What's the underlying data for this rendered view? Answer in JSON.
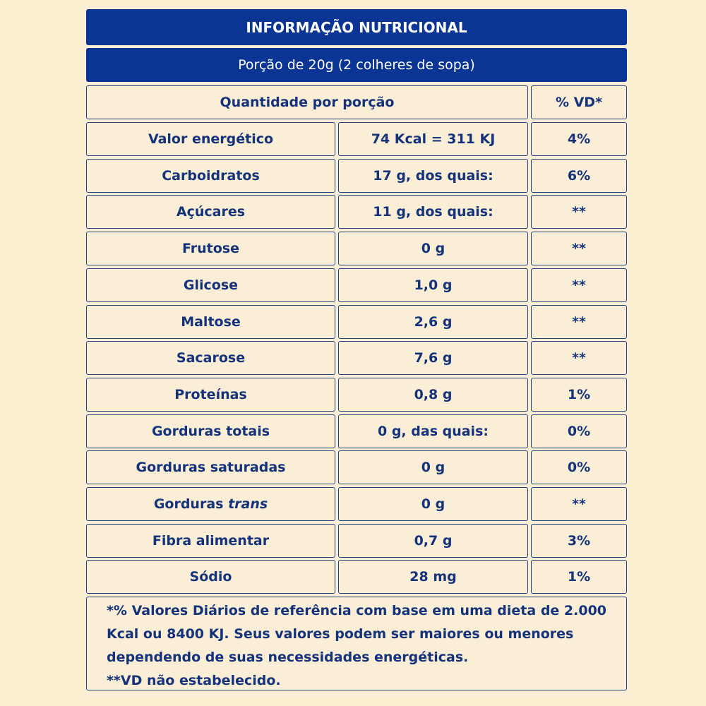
{
  "header": {
    "title": "INFORMAÇÃO NUTRICIONAL",
    "portion": "Porção de 20g (2 colheres de sopa)"
  },
  "columns": {
    "quantity": "Quantidade por porção",
    "vd": "% VD*"
  },
  "rows": [
    {
      "name": "Valor energético",
      "amount": "74 Kcal = 311 KJ",
      "vd": "4%"
    },
    {
      "name": "Carboidratos",
      "amount": "17 g, dos quais:",
      "vd": "6%"
    },
    {
      "name": "Açúcares",
      "amount": "11 g, dos quais:",
      "vd": "**"
    },
    {
      "name": "Frutose",
      "amount": "0 g",
      "vd": "**"
    },
    {
      "name": "Glicose",
      "amount": "1,0 g",
      "vd": "**"
    },
    {
      "name": "Maltose",
      "amount": "2,6 g",
      "vd": "**"
    },
    {
      "name": "Sacarose",
      "amount": "7,6 g",
      "vd": "**"
    },
    {
      "name": "Proteínas",
      "amount": "0,8 g",
      "vd": "1%"
    },
    {
      "name": "Gorduras totais",
      "amount": "0 g, das quais:",
      "vd": "0%"
    },
    {
      "name": "Gorduras saturadas",
      "amount": "0 g",
      "vd": "0%"
    },
    {
      "name_prefix": "Gorduras ",
      "name_italic": "trans",
      "amount": "0 g",
      "vd": "**"
    },
    {
      "name": "Fibra alimentar",
      "amount": "0,7 g",
      "vd": "3%"
    },
    {
      "name": "Sódio",
      "amount": "28 mg",
      "vd": "1%"
    }
  ],
  "footnote": {
    "line1": "*% Valores Diários de referência com base em uma dieta de 2.000",
    "line2": "Kcal ou 8400 KJ. Seus valores podem ser maiores ou menores",
    "line3": "dependendo de suas necessidades energéticas.",
    "line4": "**VD não estabelecido."
  },
  "colors": {
    "header_bg": "#0a3595",
    "text": "#14337a",
    "border": "#24407a",
    "background": "#faf0cf"
  }
}
